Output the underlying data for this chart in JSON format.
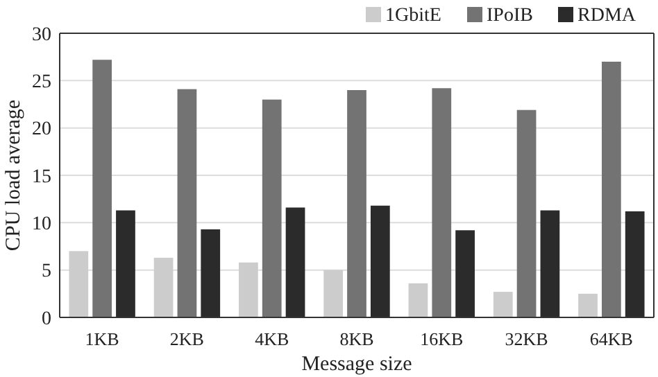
{
  "chart_data": {
    "type": "bar",
    "xlabel": "Message size",
    "ylabel": "CPU load average",
    "categories": [
      "1KB",
      "2KB",
      "4KB",
      "8KB",
      "16KB",
      "32KB",
      "64KB"
    ],
    "series": [
      {
        "name": "1GbitE",
        "color": "#cccccc",
        "values": [
          7.0,
          6.3,
          5.8,
          5.0,
          3.6,
          2.7,
          2.5
        ]
      },
      {
        "name": "IPoIB",
        "color": "#737373",
        "values": [
          27.2,
          24.1,
          23.0,
          24.0,
          24.2,
          21.9,
          27.0
        ]
      },
      {
        "name": "RDMA",
        "color": "#2b2b2b",
        "values": [
          11.3,
          9.3,
          11.6,
          11.8,
          9.2,
          11.3,
          11.2
        ]
      }
    ],
    "ylim": [
      0,
      30
    ],
    "yticks": [
      0,
      5,
      10,
      15,
      20,
      25,
      30
    ],
    "grid": "y",
    "legend": "top"
  }
}
